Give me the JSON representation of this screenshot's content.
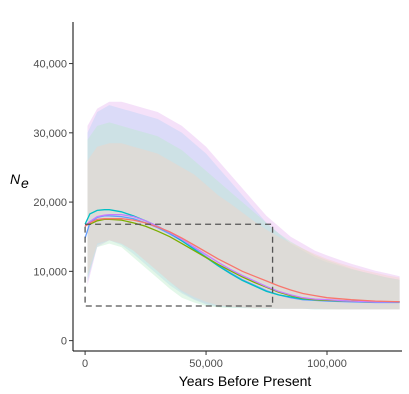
{
  "chart_data": {
    "type": "line",
    "panel_tag": "",
    "title": "",
    "xlabel": "Years Before Present",
    "ylabel": "N",
    "ylabel_sub": "e",
    "xlim": [
      -5000,
      131000
    ],
    "ylim": [
      -1500,
      46000
    ],
    "x_ticks": [
      0,
      50000,
      100000
    ],
    "x_tick_labels": [
      "0",
      "50,000",
      "100,000"
    ],
    "y_ticks": [
      0,
      10000,
      20000,
      30000,
      40000
    ],
    "y_tick_labels": [
      "0",
      "10,000",
      "20,000",
      "30,000",
      "40,000"
    ],
    "grid": false,
    "legend": "none",
    "bands": [
      {
        "color": "#e6b3f0",
        "x": [
          1000,
          5000,
          10000,
          15000,
          20000,
          25000,
          30000,
          35000,
          40000,
          45000,
          50000,
          55000,
          60000,
          65000,
          70000,
          75000,
          80000,
          85000,
          90000,
          95000,
          100000,
          105000,
          110000,
          115000,
          120000,
          125000,
          130000
        ],
        "upper": [
          31000,
          33500,
          34500,
          34500,
          34000,
          33500,
          33000,
          32000,
          31000,
          29500,
          28000,
          26000,
          24000,
          22000,
          20000,
          18000,
          16500,
          15000,
          14000,
          13000,
          12300,
          11700,
          11100,
          10600,
          10100,
          9700,
          9300
        ],
        "lower": [
          8000,
          13500,
          14500,
          14000,
          13000,
          11500,
          10000,
          8500,
          7000,
          6000,
          5300,
          5000,
          4900,
          4800,
          4700,
          4700,
          4600,
          4600,
          4600,
          4600,
          4600,
          4500,
          4500,
          4500,
          4500,
          4500,
          4500
        ]
      },
      {
        "color": "#b3d1f7",
        "x": [
          1000,
          5000,
          10000,
          15000,
          20000,
          25000,
          30000,
          35000,
          40000,
          45000,
          50000,
          55000,
          60000,
          65000,
          70000,
          75000,
          80000,
          85000,
          90000,
          95000,
          100000,
          105000,
          110000,
          115000,
          120000,
          125000,
          130000
        ],
        "upper": [
          30000,
          33000,
          34000,
          33500,
          33000,
          32500,
          32000,
          31000,
          30000,
          28500,
          27000,
          25000,
          23000,
          21000,
          19000,
          17000,
          15500,
          14000,
          13000,
          12000,
          11300,
          10800,
          10300,
          9900,
          9500,
          9100,
          8800
        ],
        "lower": [
          8500,
          13800,
          14500,
          13800,
          12500,
          11000,
          9500,
          8000,
          6800,
          5900,
          5200,
          4900,
          4800,
          4700,
          4700,
          4600,
          4600,
          4600,
          4600,
          4500,
          4500,
          4500,
          4500,
          4500,
          4500,
          4500,
          4500
        ]
      },
      {
        "color": "#b8ebc9",
        "x": [
          1000,
          5000,
          10000,
          15000,
          20000,
          25000,
          30000,
          35000,
          40000,
          45000,
          50000,
          55000,
          60000,
          65000,
          70000,
          75000,
          80000,
          85000,
          90000,
          95000,
          100000,
          105000,
          110000,
          115000,
          120000,
          125000,
          130000
        ],
        "upper": [
          29000,
          31000,
          31500,
          31000,
          30500,
          30000,
          29500,
          28500,
          27500,
          26000,
          24500,
          23000,
          21500,
          20000,
          18500,
          17000,
          15500,
          14300,
          13300,
          12300,
          11600,
          11000,
          10400,
          9900,
          9500,
          9100,
          8800
        ],
        "lower": [
          9000,
          13500,
          14000,
          13500,
          12000,
          10500,
          9000,
          7500,
          6200,
          5500,
          5000,
          4800,
          4700,
          4700,
          4600,
          4600,
          4600,
          4600,
          4600,
          4500,
          4500,
          4500,
          4500,
          4500,
          4500,
          4500,
          4500
        ]
      },
      {
        "color": "#f6d3c4",
        "x": [
          1000,
          5000,
          10000,
          15000,
          20000,
          25000,
          30000,
          35000,
          40000,
          45000,
          50000,
          55000,
          60000,
          65000,
          70000,
          75000,
          80000,
          85000,
          90000,
          95000,
          100000,
          105000,
          110000,
          115000,
          120000,
          125000,
          130000
        ],
        "upper": [
          26000,
          28000,
          28500,
          28500,
          28000,
          27500,
          27000,
          26000,
          25000,
          24000,
          22500,
          21000,
          19800,
          18500,
          17200,
          16000,
          15000,
          14100,
          13300,
          12500,
          11800,
          11200,
          10700,
          10200,
          9800,
          9400,
          9100
        ],
        "lower": [
          9500,
          14000,
          14500,
          14000,
          13000,
          11500,
          10000,
          8500,
          7200,
          6300,
          5600,
          5100,
          4900,
          4800,
          4700,
          4700,
          4600,
          4600,
          4600,
          4600,
          4500,
          4500,
          4500,
          4500,
          4500,
          4500,
          4500
        ]
      }
    ],
    "series": [
      {
        "color": "#619cff",
        "x": [
          0,
          2000,
          5000,
          8000,
          10000,
          15000,
          20000,
          25000,
          30000,
          35000,
          40000,
          45000,
          50000,
          55000,
          60000,
          65000,
          70000,
          75000,
          80000,
          85000,
          90000,
          95000,
          100000,
          110000,
          120000,
          130000
        ],
        "y": [
          14800,
          17000,
          17800,
          18000,
          18000,
          17900,
          17600,
          17000,
          16300,
          15400,
          14400,
          13300,
          12100,
          10900,
          9800,
          8800,
          8000,
          7200,
          6600,
          6200,
          5900,
          5800,
          5700,
          5600,
          5500,
          5500
        ]
      },
      {
        "color": "#00bfc4",
        "x": [
          0,
          2000,
          5000,
          8000,
          10000,
          15000,
          20000,
          25000,
          30000,
          35000,
          40000,
          45000,
          50000,
          55000,
          60000,
          65000,
          70000,
          75000,
          80000,
          85000,
          90000,
          95000,
          100000,
          110000,
          120000,
          130000
        ],
        "y": [
          16800,
          18300,
          18800,
          18900,
          18900,
          18600,
          18000,
          17300,
          16500,
          15600,
          14400,
          13200,
          12000,
          10800,
          9700,
          8700,
          7900,
          7100,
          6600,
          6300,
          6000,
          5900,
          5800,
          5700,
          5600,
          5600
        ]
      },
      {
        "color": "#7cae00",
        "x": [
          0,
          2000,
          5000,
          8000,
          10000,
          15000,
          20000,
          25000,
          30000,
          35000,
          40000,
          45000,
          50000,
          55000,
          60000,
          65000,
          70000,
          75000,
          80000,
          85000,
          90000,
          95000,
          100000,
          110000,
          120000,
          130000
        ],
        "y": [
          16700,
          16800,
          17300,
          17500,
          17500,
          17400,
          17000,
          16500,
          15800,
          15000,
          14000,
          13000,
          12000,
          11000,
          10100,
          9200,
          8400,
          7700,
          7000,
          6500,
          6100,
          5900,
          5800,
          5700,
          5600,
          5600
        ]
      },
      {
        "color": "#c77cff",
        "x": [
          0,
          2000,
          5000,
          8000,
          10000,
          15000,
          20000,
          25000,
          30000,
          35000,
          40000,
          45000,
          50000,
          55000,
          60000,
          65000,
          70000,
          75000,
          80000,
          85000,
          90000,
          95000,
          100000,
          110000,
          120000,
          130000
        ],
        "y": [
          16600,
          17200,
          17900,
          18100,
          18200,
          18200,
          17900,
          17300,
          16500,
          15600,
          14600,
          13500,
          12400,
          11300,
          10300,
          9400,
          8600,
          7800,
          7100,
          6600,
          6200,
          6000,
          5900,
          5700,
          5600,
          5600
        ]
      },
      {
        "color": "#f8766d",
        "x": [
          0,
          2000,
          5000,
          8000,
          10000,
          15000,
          20000,
          25000,
          30000,
          35000,
          40000,
          45000,
          50000,
          55000,
          60000,
          65000,
          70000,
          75000,
          80000,
          85000,
          90000,
          95000,
          100000,
          110000,
          120000,
          130000
        ],
        "y": [
          16500,
          17000,
          17500,
          17600,
          17600,
          17600,
          17400,
          17000,
          16400,
          15700,
          14800,
          13800,
          12800,
          11800,
          10900,
          10000,
          9300,
          8600,
          7900,
          7300,
          6800,
          6500,
          6200,
          5900,
          5700,
          5600
        ]
      }
    ],
    "reference_box": {
      "x": [
        0,
        77500
      ],
      "y": [
        5000,
        16800
      ],
      "color": "#555555"
    }
  }
}
